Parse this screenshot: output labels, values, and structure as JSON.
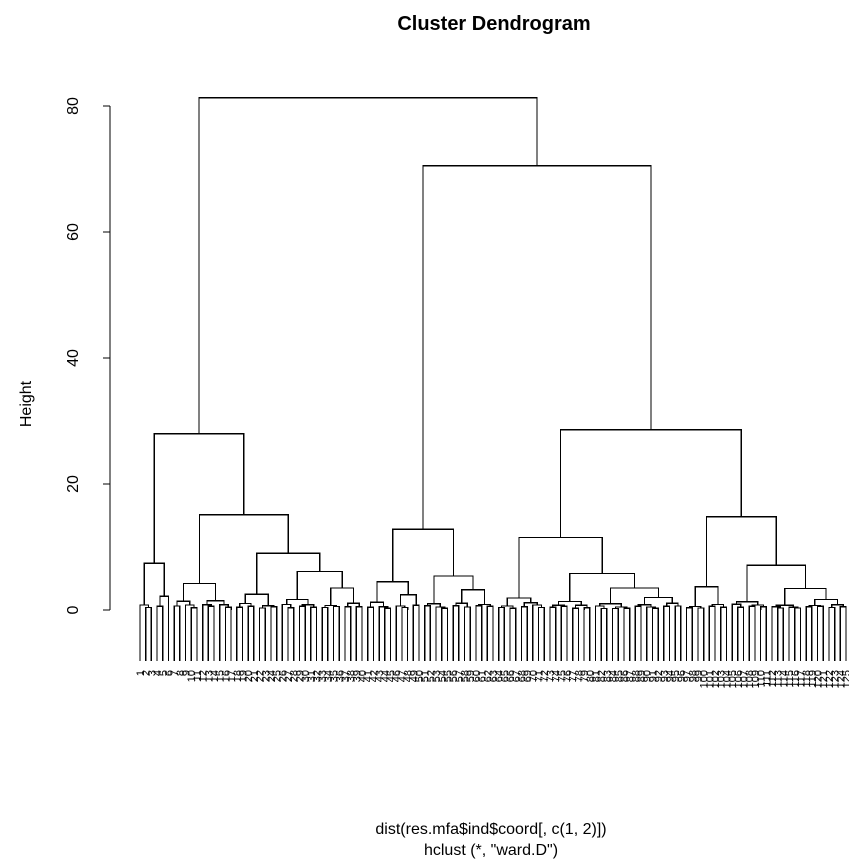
{
  "chart_data": {
    "type": "dendrogram",
    "title": "Cluster Dendrogram",
    "ylabel": "Height",
    "xlabel": "dist(res.mfa$ind$coord[, c(1, 2)])",
    "sub": "hclust (*, \"ward.D\")",
    "ylim": [
      0,
      85
    ],
    "yticks": [
      0,
      20,
      40,
      60,
      80
    ],
    "ytick_labels": [
      "0",
      "20",
      "40",
      "60",
      "80"
    ],
    "n_leaves": 125,
    "merges": [
      {
        "left": [
          0,
          39
        ],
        "right": [
          40,
          124
        ],
        "height": 81.3
      },
      {
        "left": [
          40,
          62
        ],
        "right": [
          63,
          124
        ],
        "height": 70.5
      },
      {
        "left": [
          0,
          5
        ],
        "right": [
          6,
          39
        ],
        "height": 28.0
      },
      {
        "left": [
          63,
          95
        ],
        "right": [
          96,
          124
        ],
        "height": 28.6
      },
      {
        "left": [
          6,
          16
        ],
        "right": [
          17,
          39
        ],
        "height": 15.1
      },
      {
        "left": [
          96,
          103
        ],
        "right": [
          104,
          124
        ],
        "height": 14.8
      },
      {
        "left": [
          40,
          49
        ],
        "right": [
          50,
          62
        ],
        "height": 12.8
      },
      {
        "left": [
          63,
          71
        ],
        "right": [
          72,
          95
        ],
        "height": 11.5
      },
      {
        "left": [
          17,
          24
        ],
        "right": [
          25,
          39
        ],
        "height": 9.0
      },
      {
        "left": [
          0,
          2
        ],
        "right": [
          3,
          5
        ],
        "height": 7.4
      },
      {
        "left": [
          104,
          110
        ],
        "right": [
          111,
          124
        ],
        "height": 7.1
      },
      {
        "left": [
          25,
          31
        ],
        "right": [
          32,
          39
        ],
        "height": 6.1
      },
      {
        "left": [
          72,
          79
        ],
        "right": [
          80,
          95
        ],
        "height": 5.8
      },
      {
        "left": [
          50,
          54
        ],
        "right": [
          55,
          62
        ],
        "height": 5.4
      },
      {
        "left": [
          40,
          44
        ],
        "right": [
          45,
          49
        ],
        "height": 4.5
      },
      {
        "left": [
          6,
          10
        ],
        "right": [
          11,
          16
        ],
        "height": 4.2
      },
      {
        "left": [
          96,
          99
        ],
        "right": [
          100,
          103
        ],
        "height": 3.7
      },
      {
        "left": [
          80,
          86
        ],
        "right": [
          87,
          95
        ],
        "height": 3.5
      },
      {
        "left": [
          32,
          35
        ],
        "right": [
          36,
          39
        ],
        "height": 3.5
      },
      {
        "left": [
          111,
          116
        ],
        "right": [
          117,
          124
        ],
        "height": 3.4
      },
      {
        "left": [
          55,
          58
        ],
        "right": [
          59,
          62
        ],
        "height": 3.2
      },
      {
        "left": [
          17,
          20
        ],
        "right": [
          21,
          24
        ],
        "height": 2.5
      },
      {
        "left": [
          45,
          47
        ],
        "right": [
          48,
          49
        ],
        "height": 2.4
      },
      {
        "left": [
          3,
          4
        ],
        "right": [
          5,
          5
        ],
        "height": 2.2
      },
      {
        "left": [
          87,
          91
        ],
        "right": [
          92,
          95
        ],
        "height": 2.0
      },
      {
        "left": [
          63,
          66
        ],
        "right": [
          67,
          71
        ],
        "height": 1.9
      }
    ]
  }
}
